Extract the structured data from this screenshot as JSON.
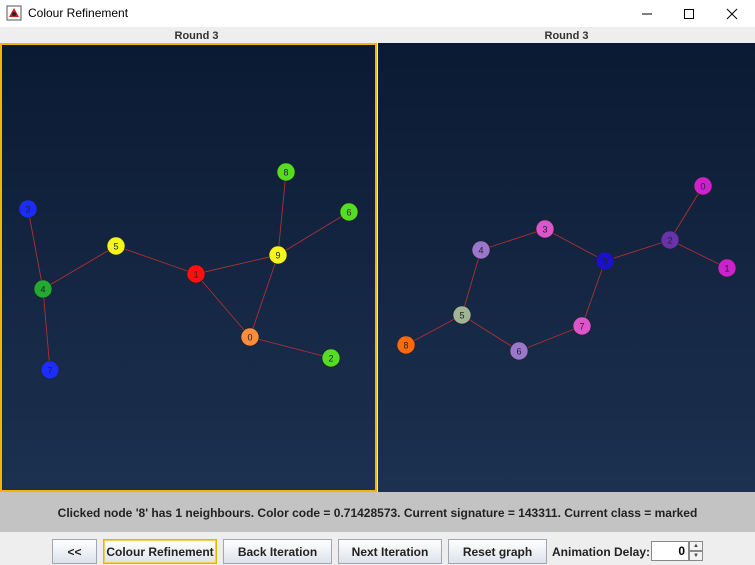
{
  "window": {
    "title": "Colour Refinement"
  },
  "left_graph": {
    "round_label": "Round 3",
    "nodes": [
      {
        "id": "0",
        "color": "#ff8b3d"
      },
      {
        "id": "1",
        "color": "#ff1010"
      },
      {
        "id": "2",
        "color": "#55dd22"
      },
      {
        "id": "3",
        "color": "#1a2cff"
      },
      {
        "id": "4",
        "color": "#22aa33"
      },
      {
        "id": "5",
        "color": "#f5f51e"
      },
      {
        "id": "6",
        "color": "#55dd22"
      },
      {
        "id": "7",
        "color": "#1a2cff"
      },
      {
        "id": "8",
        "color": "#55dd22"
      },
      {
        "id": "9",
        "color": "#f5f51e"
      }
    ],
    "edges": [
      [
        "3",
        "4"
      ],
      [
        "4",
        "7"
      ],
      [
        "4",
        "5"
      ],
      [
        "5",
        "1"
      ],
      [
        "1",
        "9"
      ],
      [
        "1",
        "0"
      ],
      [
        "9",
        "0"
      ],
      [
        "9",
        "8"
      ],
      [
        "9",
        "6"
      ],
      [
        "0",
        "2"
      ]
    ]
  },
  "right_graph": {
    "round_label": "Round 3",
    "nodes": [
      {
        "id": "0",
        "color": "#cc22cc"
      },
      {
        "id": "1",
        "color": "#cc22cc"
      },
      {
        "id": "2",
        "color": "#6633aa"
      },
      {
        "id": "3",
        "color": "#dd55cc"
      },
      {
        "id": "4",
        "color": "#9a77cc"
      },
      {
        "id": "5",
        "color": "#a0b496"
      },
      {
        "id": "6",
        "color": "#9a77cc"
      },
      {
        "id": "7",
        "color": "#dd55cc"
      },
      {
        "id": "8",
        "color": "#ff6a10"
      },
      {
        "id": "9",
        "color": "#1a11cc"
      }
    ],
    "edges": [
      [
        "0",
        "2"
      ],
      [
        "2",
        "1"
      ],
      [
        "2",
        "9"
      ],
      [
        "9",
        "3"
      ],
      [
        "9",
        "7"
      ],
      [
        "3",
        "4"
      ],
      [
        "4",
        "5"
      ],
      [
        "5",
        "8"
      ],
      [
        "5",
        "6"
      ],
      [
        "6",
        "7"
      ]
    ]
  },
  "status": {
    "message": "Clicked node '8' has 1 neighbours.  Color code = 0.71428573.  Current signature = 143311. Current class = marked"
  },
  "controls": {
    "back_label": "<<",
    "colour_refinement_label": "Colour Refinement",
    "back_iteration_label": "Back Iteration",
    "next_iteration_label": "Next Iteration",
    "reset_graph_label": "Reset graph",
    "animation_delay_label": "Animation Delay:",
    "animation_delay_value": "0"
  },
  "colors": {
    "highlight_border": "#f5b400",
    "edge": "#b03030",
    "canvas_top": "#0b1a33",
    "canvas_bottom": "#1c3150"
  }
}
